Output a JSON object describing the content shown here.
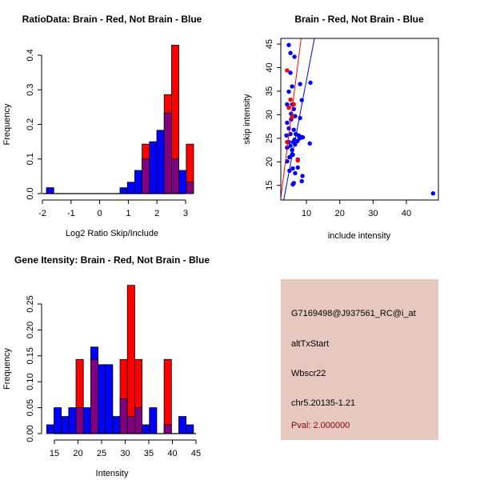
{
  "colors": {
    "brain": "#ff0000",
    "not_brain": "#0000ff",
    "overlap": "#800080",
    "panel": "#e6c8c0",
    "pval": "#8b0000"
  },
  "chart_data": [
    {
      "type": "bar",
      "title": "RatioData: Brain - Red, Not Brain - Blue",
      "xlabel": "Log2 Ratio Skip/Include",
      "ylabel": "Frequency",
      "xlim": [
        -2,
        3.3
      ],
      "ylim": [
        0,
        0.43
      ],
      "xticks": [
        -2,
        -1,
        0,
        1,
        2,
        3
      ],
      "yticks": [
        0.0,
        0.1,
        0.2,
        0.3,
        0.4
      ],
      "ytick_labels": [
        "0.0",
        "0.1",
        "0.2",
        "0.3",
        "0.4"
      ],
      "break_start": -1.86,
      "bin_width": 0.257,
      "series": [
        {
          "name": "Not Brain",
          "color": "#0000ff",
          "values": [
            0.017,
            0,
            0,
            0,
            0,
            0,
            0,
            0,
            0,
            0,
            0.017,
            0.033,
            0.067,
            0.1,
            0.15,
            0.183,
            0.233,
            0.1,
            0.067,
            0.033
          ]
        },
        {
          "name": "Brain",
          "color": "#ff0000",
          "values": [
            0,
            0,
            0,
            0,
            0,
            0,
            0,
            0,
            0,
            0,
            0,
            0,
            0,
            0.143,
            0,
            0,
            0.286,
            0.429,
            0,
            0.143
          ]
        }
      ]
    },
    {
      "type": "scatter",
      "title": "Brain - Red, Not Brain - Blue",
      "xlabel": "include intensity",
      "ylabel": "skip intensity",
      "xlim": [
        2.3,
        49.6
      ],
      "ylim": [
        11.9,
        46.2
      ],
      "xticks": [
        10,
        20,
        30,
        40
      ],
      "yticks": [
        15,
        20,
        25,
        30,
        35,
        40,
        45
      ],
      "series": [
        {
          "name": "Not Brain",
          "color": "#0000ff",
          "points": [
            [
              4.7,
              44.8
            ],
            [
              5.2,
              43.1
            ],
            [
              6.4,
              42.3
            ],
            [
              5.2,
              38.9
            ],
            [
              8.1,
              36.5
            ],
            [
              11.2,
              36.8
            ],
            [
              5.7,
              36.0
            ],
            [
              4.7,
              34.9
            ],
            [
              8.6,
              33.1
            ],
            [
              4.2,
              32.2
            ],
            [
              5.7,
              32.2
            ],
            [
              6.2,
              31.2
            ],
            [
              5.4,
              30.2
            ],
            [
              6.6,
              29.7
            ],
            [
              8.1,
              29.3
            ],
            [
              5.4,
              29.0
            ],
            [
              4.2,
              28.3
            ],
            [
              4.7,
              27.1
            ],
            [
              6.2,
              26.8
            ],
            [
              4.0,
              25.6
            ],
            [
              5.2,
              25.9
            ],
            [
              6.8,
              25.9
            ],
            [
              7.6,
              25.6
            ],
            [
              8.4,
              25.3
            ],
            [
              8.9,
              25.2
            ],
            [
              6.4,
              24.7
            ],
            [
              7.3,
              24.4
            ],
            [
              8.0,
              25.0
            ],
            [
              4.7,
              24.2
            ],
            [
              6.0,
              24.2
            ],
            [
              4.2,
              23.0
            ],
            [
              5.2,
              23.4
            ],
            [
              6.6,
              23.7
            ],
            [
              11.0,
              23.9
            ],
            [
              5.7,
              22.5
            ],
            [
              5.7,
              21.6
            ],
            [
              5.9,
              21.5
            ],
            [
              4.9,
              21.0
            ],
            [
              7.4,
              20.5
            ],
            [
              4.2,
              20.1
            ],
            [
              4.9,
              18.1
            ],
            [
              5.9,
              18.6
            ],
            [
              7.4,
              18.8
            ],
            [
              6.6,
              17.6
            ],
            [
              8.8,
              17.0
            ],
            [
              8.6,
              15.9
            ],
            [
              6.2,
              15.5
            ],
            [
              5.9,
              15.2
            ],
            [
              48.0,
              13.3
            ]
          ]
        },
        {
          "name": "Brain",
          "color": "#ff0000",
          "points": [
            [
              4.2,
              39.4
            ],
            [
              5.2,
              33.2
            ],
            [
              4.7,
              31.5
            ],
            [
              6.2,
              32.2
            ],
            [
              5.7,
              29.5
            ],
            [
              4.2,
              24.2
            ],
            [
              7.4,
              20.3
            ]
          ]
        }
      ],
      "lines": [
        {
          "name": "Brain fit",
          "color": "#ff0000",
          "intercept": -0.43,
          "slope": 5.55
        },
        {
          "name": "Not Brain fit",
          "color": "#0000ff",
          "intercept": 0.1,
          "slope": 3.72
        }
      ]
    },
    {
      "type": "bar",
      "title": "Gene Itensity: Brain - Red, Not Brain - Blue",
      "xlabel": "Intensity",
      "ylabel": "Frequency",
      "xlim": [
        13,
        45
      ],
      "ylim": [
        0,
        0.29
      ],
      "xticks": [
        15,
        20,
        25,
        30,
        35,
        40,
        45
      ],
      "yticks": [
        0,
        0.05,
        0.1,
        0.15,
        0.2,
        0.25
      ],
      "ytick_labels": [
        "0.00",
        "0.05",
        "0.10",
        "0.15",
        "0.20",
        "0.25"
      ],
      "break_start": 13.36,
      "bin_width": 1.555,
      "series": [
        {
          "name": "Not Brain",
          "color": "#0000ff",
          "values": [
            0.017,
            0.05,
            0.033,
            0.05,
            0.05,
            0.05,
            0.167,
            0.133,
            0.133,
            0.033,
            0.067,
            0.033,
            0.05,
            0.017,
            0.05,
            0,
            0.017,
            0,
            0.033,
            0.017
          ]
        },
        {
          "name": "Brain",
          "color": "#ff0000",
          "values": [
            0,
            0,
            0,
            0,
            0.143,
            0,
            0.143,
            0,
            0,
            0,
            0.143,
            0.286,
            0.143,
            0,
            0,
            0,
            0.143,
            0,
            0,
            0
          ]
        }
      ]
    }
  ],
  "info": {
    "probe": "G7169498@J937561_RC@i_at",
    "event_type": "altTxStart",
    "gene": "Wbscr22",
    "location": "chr5.20135-1.21",
    "pval": "Pval: 2.000000"
  }
}
